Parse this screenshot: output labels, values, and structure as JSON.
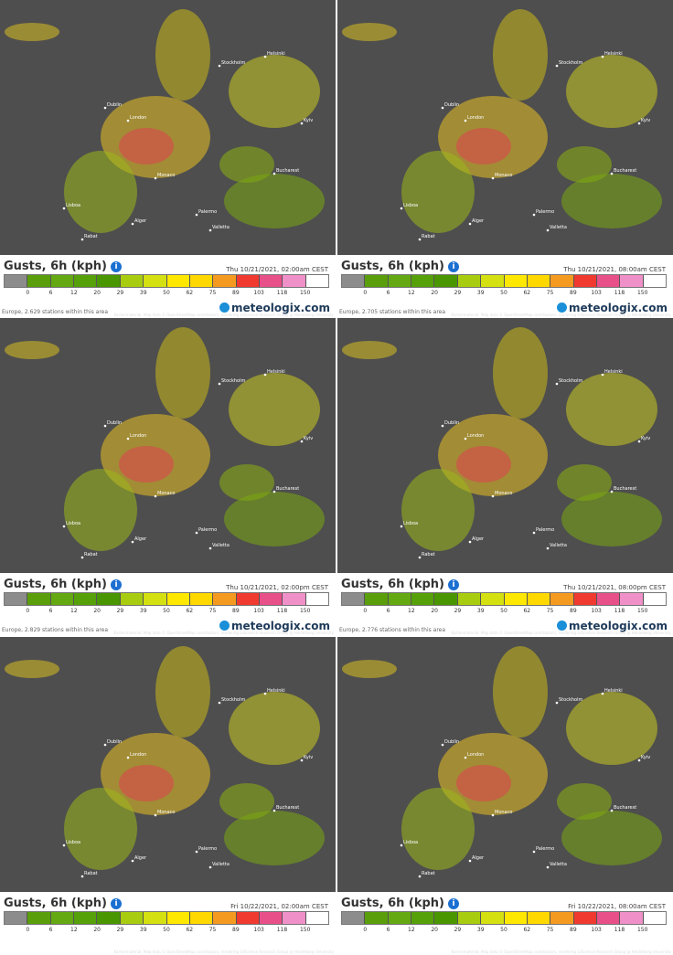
{
  "legend": {
    "title": "Gusts, 6h (kph)",
    "colors": [
      "#8c8c8c",
      "#5a9e0c",
      "#64a812",
      "#56a00a",
      "#4a9600",
      "#a8cc10",
      "#d4e010",
      "#ffe800",
      "#ffd800",
      "#f59a20",
      "#f03a30",
      "#e8508a",
      "#f090c8",
      "#ffffff"
    ],
    "ticks": [
      0,
      6,
      12,
      20,
      29,
      39,
      50,
      62,
      75,
      89,
      103,
      118,
      150
    ]
  },
  "attribution": "Kartenmaterial: Map data © OpenStreetMap contributors, rendering GIScience Research Group @ Heidelberg University",
  "logo": "meteologix.com",
  "cities": [
    "London",
    "Dublin",
    "Stockholm",
    "Helsinki",
    "Monaco",
    "Palermo",
    "Valletta",
    "Alger",
    "Rabat",
    "Lisboa",
    "Kyiv",
    "Bucharest"
  ],
  "panels": [
    {
      "time": "Thu 10/21/2021, 02:00am CEST",
      "footer": "Europe, 2.629 stations within this area"
    },
    {
      "time": "Thu 10/21/2021, 08:00am CEST",
      "footer": "Europe, 2.705 stations within this area"
    },
    {
      "time": "Thu 10/21/2021, 02:00pm CEST",
      "footer": "Europe, 2.829 stations within this area"
    },
    {
      "time": "Thu 10/21/2021, 08:00pm CEST",
      "footer": "Europe, 2.776 stations within this area"
    },
    {
      "time": "Fri 10/22/2021, 02:00am CEST"
    },
    {
      "time": "Fri 10/22/2021, 08:00am CEST"
    }
  ]
}
